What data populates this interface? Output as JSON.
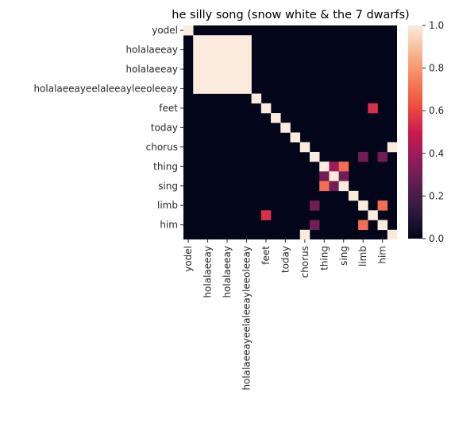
{
  "chart_data": {
    "type": "heatmap",
    "title": "he silly song (snow white & the 7 dwarfs)",
    "row_labels": [
      "yodel",
      "holalaeeay",
      "holalaeeay",
      "holalaeeayeelaleeayleeoleeay",
      "feet",
      "today",
      "chorus",
      "thing",
      "sing",
      "limb",
      "him"
    ],
    "col_labels": [
      "yodel",
      "holalaeeay",
      "holalaeeay",
      "holalaeeayeelaleeayleeoleeay",
      "feet",
      "today",
      "chorus",
      "thing",
      "sing",
      "limb",
      "him"
    ],
    "n": 22,
    "row_label_positions": [
      0,
      2,
      4,
      6,
      8,
      10,
      12,
      14,
      16,
      18,
      20
    ],
    "col_label_positions": [
      0,
      2,
      4,
      6,
      8,
      10,
      12,
      14,
      16,
      18,
      20
    ],
    "cells": [
      {
        "r": 0,
        "c": 0,
        "v": 1.0
      },
      {
        "r": 1,
        "c": 1,
        "v": 1.0,
        "rows": 6,
        "cols": 6
      },
      {
        "r": 7,
        "c": 7,
        "v": 1.0
      },
      {
        "r": 8,
        "c": 8,
        "v": 1.0
      },
      {
        "r": 8,
        "c": 19,
        "v": 0.55
      },
      {
        "r": 9,
        "c": 9,
        "v": 1.0
      },
      {
        "r": 10,
        "c": 10,
        "v": 1.0
      },
      {
        "r": 11,
        "c": 11,
        "v": 1.0
      },
      {
        "r": 12,
        "c": 12,
        "v": 1.0
      },
      {
        "r": 12,
        "c": 21,
        "v": 1.0
      },
      {
        "r": 13,
        "c": 13,
        "v": 1.0
      },
      {
        "r": 14,
        "c": 14,
        "v": 1.0
      },
      {
        "r": 14,
        "c": 15,
        "v": 0.4
      },
      {
        "r": 14,
        "c": 16,
        "v": 0.7
      },
      {
        "r": 13,
        "c": 18,
        "v": 0.3
      },
      {
        "r": 13,
        "c": 20,
        "v": 0.3
      },
      {
        "r": 15,
        "c": 14,
        "v": 0.3
      },
      {
        "r": 15,
        "c": 15,
        "v": 1.0
      },
      {
        "r": 15,
        "c": 16,
        "v": 0.3
      },
      {
        "r": 16,
        "c": 14,
        "v": 0.7
      },
      {
        "r": 16,
        "c": 15,
        "v": 0.3
      },
      {
        "r": 16,
        "c": 16,
        "v": 1.0
      },
      {
        "r": 17,
        "c": 17,
        "v": 1.0
      },
      {
        "r": 18,
        "c": 13,
        "v": 0.3
      },
      {
        "r": 18,
        "c": 18,
        "v": 1.0
      },
      {
        "r": 18,
        "c": 20,
        "v": 0.7
      },
      {
        "r": 19,
        "c": 8,
        "v": 0.55
      },
      {
        "r": 19,
        "c": 19,
        "v": 1.0
      },
      {
        "r": 20,
        "c": 13,
        "v": 0.3
      },
      {
        "r": 20,
        "c": 18,
        "v": 0.7
      },
      {
        "r": 20,
        "c": 20,
        "v": 1.0
      },
      {
        "r": 21,
        "c": 12,
        "v": 1.0
      },
      {
        "r": 21,
        "c": 21,
        "v": 1.0
      }
    ],
    "colorbar": {
      "ticks": [
        0.0,
        0.2,
        0.4,
        0.6,
        0.8,
        1.0
      ],
      "tick_labels": [
        "0.0",
        "0.2",
        "0.4",
        "0.6",
        "0.8",
        "1.0"
      ],
      "range": [
        0,
        1
      ],
      "colormap": "rocket"
    }
  }
}
